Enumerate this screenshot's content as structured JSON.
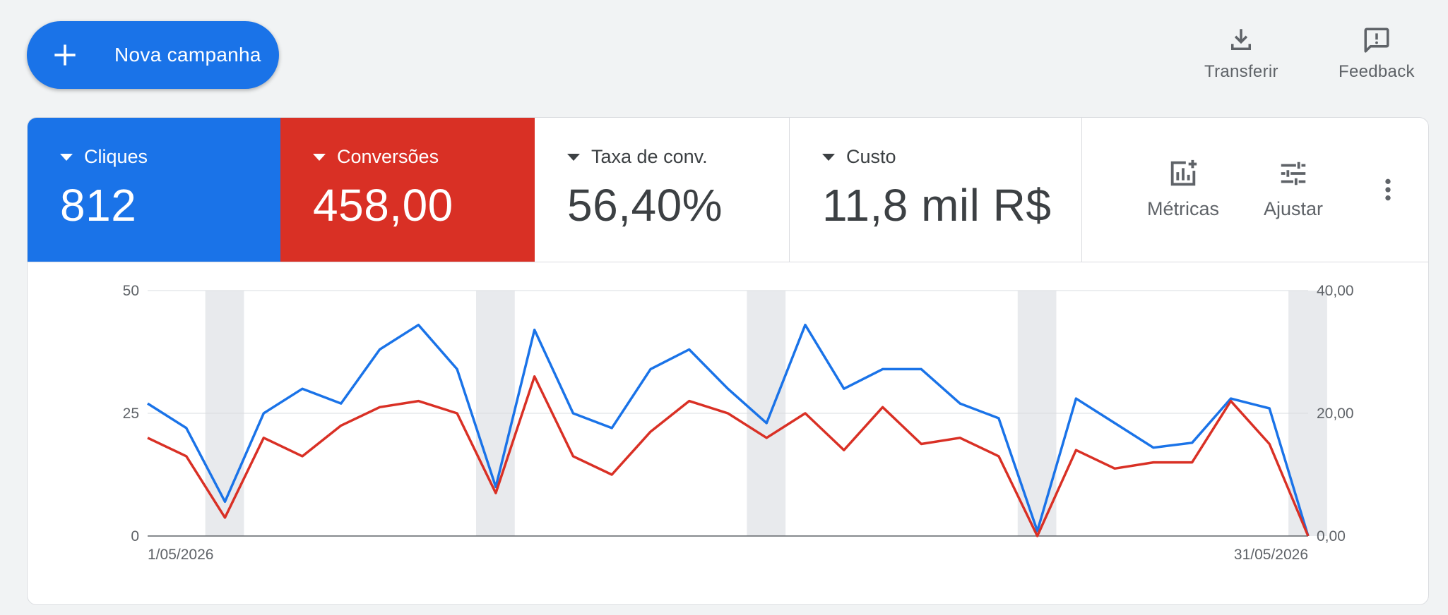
{
  "toolbar": {
    "new_campaign_label": "Nova campanha",
    "download_label": "Transferir",
    "feedback_label": "Feedback"
  },
  "scorecards": [
    {
      "label": "Cliques",
      "value": "812",
      "color": "#1a73e8",
      "selected": true
    },
    {
      "label": "Conversões",
      "value": "458,00",
      "color": "#d93025",
      "selected": true
    },
    {
      "label": "Taxa de conv.",
      "value": "56,40%",
      "selected": false
    },
    {
      "label": "Custo",
      "value": "11,8 mil R$",
      "selected": false
    }
  ],
  "actions": {
    "metrics_label": "Métricas",
    "adjust_label": "Ajustar"
  },
  "icons": {
    "new_campaign": "plus-icon",
    "download": "download-icon",
    "feedback": "feedback-icon",
    "metrics": "add-chart-icon",
    "adjust": "tune-icon",
    "more": "more-vert-icon"
  },
  "chart_data": {
    "type": "line",
    "x_start_label": "1/05/2026",
    "x_end_label": "31/05/2026",
    "x_count": 31,
    "y_left": {
      "ticks": [
        0,
        25,
        50
      ],
      "tick_labels": [
        "0",
        "25",
        "50"
      ],
      "range": [
        0,
        50
      ]
    },
    "y_right": {
      "ticks": [
        0,
        20,
        40
      ],
      "tick_labels": [
        "0,00",
        "20,00",
        "40,00"
      ],
      "range": [
        0,
        40
      ]
    },
    "weekend_bands": [
      2,
      9,
      16,
      23,
      30
    ],
    "grid": true,
    "series": [
      {
        "name": "Cliques",
        "axis": "left",
        "color": "#1a73e8",
        "values": [
          27,
          22,
          7,
          25,
          30,
          27,
          38,
          43,
          34,
          10,
          42,
          25,
          22,
          34,
          38,
          30,
          23,
          43,
          30,
          34,
          34,
          27,
          24,
          1,
          28,
          23,
          18,
          19,
          28,
          26,
          0
        ]
      },
      {
        "name": "Conversões",
        "axis": "right",
        "color": "#d93025",
        "values": [
          16,
          13,
          3,
          16,
          13,
          18,
          21,
          22,
          20,
          7,
          26,
          13,
          10,
          17,
          22,
          20,
          16,
          20,
          14,
          21,
          15,
          16,
          13,
          0,
          14,
          11,
          12,
          12,
          22,
          15,
          0
        ]
      }
    ]
  }
}
